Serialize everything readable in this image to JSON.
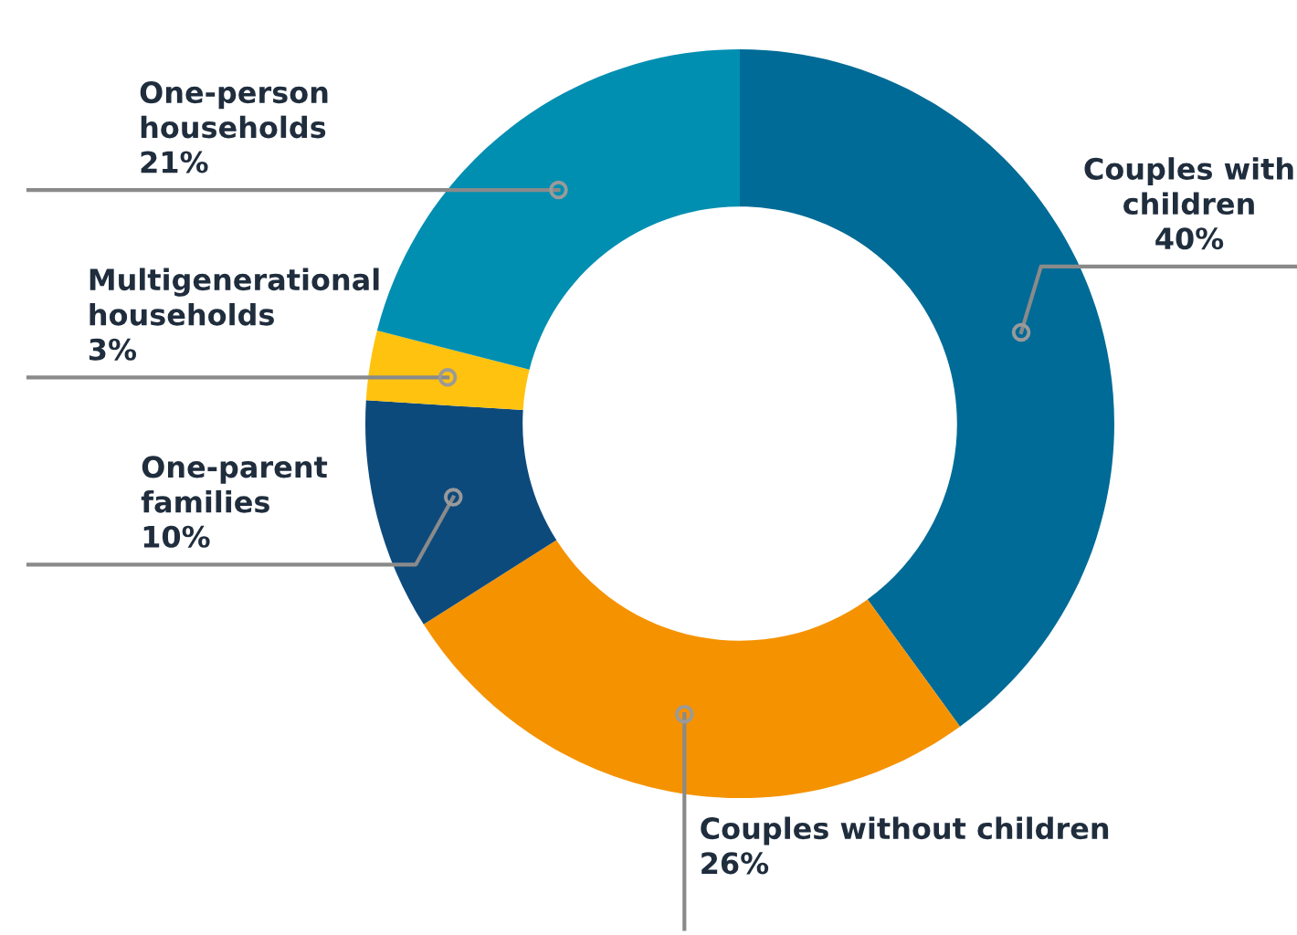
{
  "chart_data": {
    "type": "donut",
    "categories": [
      "Couples with\nchildren",
      "Couples without children",
      "One-parent\nfamilies",
      "Multigenerational\nhouseholds",
      "One-person\nhouseholds"
    ],
    "values": [
      40,
      26,
      10,
      3,
      21
    ],
    "value_labels": [
      "40%",
      "26%",
      "10%",
      "3%",
      "21%"
    ],
    "colors": [
      "#006b96",
      "#f59200",
      "#0d4a7c",
      "#ffc20e",
      "#008fb1"
    ]
  }
}
